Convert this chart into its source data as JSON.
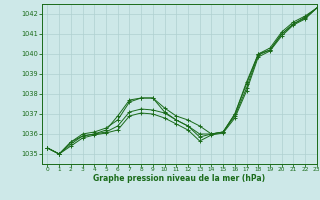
{
  "title": "Graphe pression niveau de la mer (hPa)",
  "bg_color": "#cde8e8",
  "grid_color": "#b0d0d0",
  "line_color": "#1a6b1a",
  "xlim": [
    -0.5,
    23
  ],
  "ylim": [
    1034.5,
    1042.5
  ],
  "xticks": [
    0,
    1,
    2,
    3,
    4,
    5,
    6,
    7,
    8,
    9,
    10,
    11,
    12,
    13,
    14,
    15,
    16,
    17,
    18,
    19,
    20,
    21,
    22,
    23
  ],
  "yticks": [
    1035,
    1036,
    1037,
    1038,
    1039,
    1040,
    1041,
    1042
  ],
  "series1_x": [
    0,
    1,
    2,
    3,
    4,
    5,
    6,
    7,
    8,
    9,
    10,
    11,
    12,
    13,
    14,
    15,
    16,
    17,
    18,
    19,
    20,
    21,
    22,
    23
  ],
  "series1_y": [
    1035.3,
    1035.0,
    1035.6,
    1035.9,
    1036.0,
    1036.2,
    1036.9,
    1037.7,
    1037.8,
    1037.8,
    1037.3,
    1036.9,
    1036.7,
    1036.4,
    1036.0,
    1036.1,
    1037.0,
    1038.6,
    1040.0,
    1040.3,
    1041.1,
    1041.6,
    1041.9,
    1042.3
  ],
  "series2_x": [
    0,
    1,
    2,
    3,
    4,
    5,
    6,
    7,
    8,
    9,
    10,
    11,
    12,
    13,
    14,
    15,
    16,
    17,
    18,
    19,
    20,
    21,
    22,
    23
  ],
  "series2_y": [
    1035.3,
    1035.0,
    1035.6,
    1036.0,
    1036.1,
    1036.3,
    1036.7,
    1037.6,
    1037.8,
    1037.8,
    1037.1,
    1036.7,
    1036.4,
    1036.0,
    1036.0,
    1036.1,
    1037.0,
    1038.5,
    1040.0,
    1040.2,
    1041.0,
    1041.5,
    1041.85,
    1042.3
  ],
  "series3_x": [
    0,
    1,
    2,
    3,
    4,
    5,
    6,
    7,
    8,
    9,
    10,
    11,
    12,
    13,
    14,
    15,
    16,
    17,
    18,
    19,
    20,
    21,
    22,
    23
  ],
  "series3_y": [
    1035.3,
    1035.0,
    1035.5,
    1035.9,
    1036.0,
    1036.1,
    1036.4,
    1037.1,
    1037.25,
    1037.2,
    1037.05,
    1036.7,
    1036.4,
    1035.85,
    1036.0,
    1036.1,
    1036.9,
    1038.3,
    1039.95,
    1040.2,
    1041.0,
    1041.5,
    1041.8,
    1042.3
  ],
  "series4_x": [
    0,
    1,
    2,
    3,
    4,
    5,
    6,
    7,
    8,
    9,
    10,
    11,
    12,
    13,
    14,
    15,
    16,
    17,
    18,
    19,
    20,
    21,
    22,
    23
  ],
  "series4_y": [
    1035.3,
    1035.0,
    1035.4,
    1035.8,
    1035.95,
    1036.05,
    1036.2,
    1036.9,
    1037.05,
    1037.0,
    1036.8,
    1036.5,
    1036.2,
    1035.65,
    1035.95,
    1036.05,
    1036.8,
    1038.15,
    1039.85,
    1040.15,
    1040.9,
    1041.45,
    1041.75,
    1042.3
  ]
}
